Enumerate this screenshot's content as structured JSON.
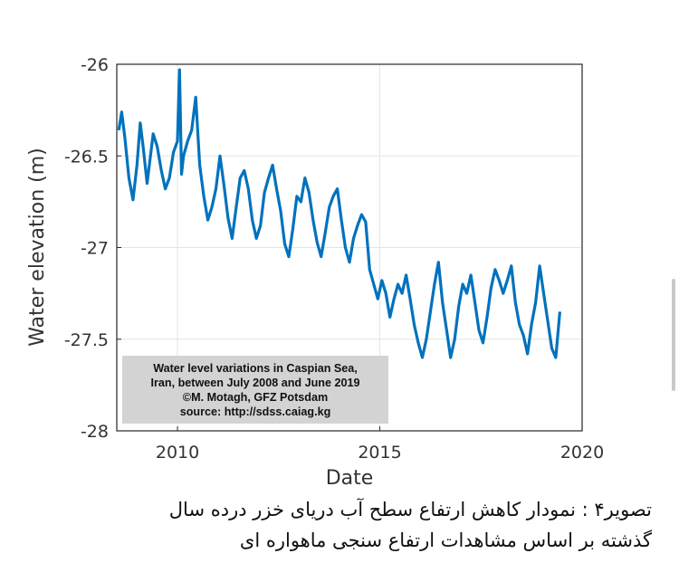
{
  "chart_data": {
    "type": "line",
    "xlabel": "Date",
    "ylabel": "Water elevation (m)",
    "xlim": [
      2008.5,
      2020.0
    ],
    "ylim": [
      -28.0,
      -26.0
    ],
    "xticks": [
      2010,
      2015,
      2020
    ],
    "yticks": [
      -26,
      -26.5,
      -27,
      -27.5,
      -28
    ],
    "xtick_labels": [
      "2010",
      "2015",
      "2020"
    ],
    "ytick_labels": [
      "-26",
      "-26.5",
      "-27",
      "-27.5",
      "-28"
    ],
    "grid": true,
    "color": "#0072bd",
    "x": [
      2008.55,
      2008.62,
      2008.7,
      2008.8,
      2008.9,
      2009.0,
      2009.08,
      2009.15,
      2009.25,
      2009.32,
      2009.4,
      2009.5,
      2009.6,
      2009.7,
      2009.8,
      2009.9,
      2010.0,
      2010.05,
      2010.1,
      2010.15,
      2010.25,
      2010.35,
      2010.45,
      2010.55,
      2010.65,
      2010.75,
      2010.85,
      2010.95,
      2011.05,
      2011.15,
      2011.25,
      2011.35,
      2011.45,
      2011.55,
      2011.65,
      2011.75,
      2011.85,
      2011.95,
      2012.05,
      2012.15,
      2012.25,
      2012.35,
      2012.45,
      2012.55,
      2012.65,
      2012.75,
      2012.85,
      2012.95,
      2013.05,
      2013.15,
      2013.25,
      2013.35,
      2013.45,
      2013.55,
      2013.65,
      2013.75,
      2013.85,
      2013.95,
      2014.05,
      2014.15,
      2014.25,
      2014.35,
      2014.45,
      2014.55,
      2014.65,
      2014.75,
      2014.85,
      2014.95,
      2015.05,
      2015.15,
      2015.25,
      2015.35,
      2015.45,
      2015.55,
      2015.65,
      2015.75,
      2015.85,
      2015.95,
      2016.05,
      2016.15,
      2016.25,
      2016.35,
      2016.45,
      2016.55,
      2016.65,
      2016.75,
      2016.85,
      2016.95,
      2017.05,
      2017.15,
      2017.25,
      2017.35,
      2017.45,
      2017.55,
      2017.65,
      2017.75,
      2017.85,
      2017.95,
      2018.05,
      2018.15,
      2018.25,
      2018.35,
      2018.45,
      2018.55,
      2018.65,
      2018.75,
      2018.85,
      2018.95,
      2019.05,
      2019.15,
      2019.25,
      2019.35,
      2019.45
    ],
    "y": [
      -26.36,
      -26.26,
      -26.4,
      -26.62,
      -26.74,
      -26.55,
      -26.32,
      -26.45,
      -26.65,
      -26.52,
      -26.38,
      -26.45,
      -26.58,
      -26.68,
      -26.62,
      -26.48,
      -26.42,
      -26.03,
      -26.6,
      -26.5,
      -26.42,
      -26.36,
      -26.18,
      -26.55,
      -26.72,
      -26.85,
      -26.78,
      -26.68,
      -26.5,
      -26.66,
      -26.84,
      -26.95,
      -26.78,
      -26.62,
      -26.58,
      -26.68,
      -26.85,
      -26.95,
      -26.88,
      -26.7,
      -26.62,
      -26.55,
      -26.68,
      -26.8,
      -26.98,
      -27.05,
      -26.9,
      -26.72,
      -26.75,
      -26.62,
      -26.7,
      -26.85,
      -26.97,
      -27.05,
      -26.92,
      -26.78,
      -26.72,
      -26.68,
      -26.85,
      -27.0,
      -27.08,
      -26.95,
      -26.88,
      -26.82,
      -26.86,
      -27.12,
      -27.2,
      -27.28,
      -27.18,
      -27.25,
      -27.38,
      -27.28,
      -27.2,
      -27.25,
      -27.15,
      -27.28,
      -27.42,
      -27.52,
      -27.6,
      -27.5,
      -27.35,
      -27.2,
      -27.08,
      -27.3,
      -27.45,
      -27.6,
      -27.5,
      -27.32,
      -27.2,
      -27.25,
      -27.15,
      -27.3,
      -27.45,
      -27.52,
      -27.38,
      -27.22,
      -27.12,
      -27.18,
      -27.25,
      -27.18,
      -27.1,
      -27.3,
      -27.42,
      -27.48,
      -27.58,
      -27.42,
      -27.3,
      -27.1,
      -27.25,
      -27.4,
      -27.55,
      -27.6,
      -27.35
    ],
    "annotation_lines": [
      "Water level variations in Caspian Sea,",
      "Iran, between July 2008 and June 2019",
      "©M. Motagh, GFZ Potsdam",
      "source: http://sdss.caiag.kg"
    ]
  },
  "caption": {
    "line1": "تصویر۴ : نمودار کاهش ارتفاع سطح آب دریای خزر درده سال",
    "line2": "گذشته بر اساس مشاهدات ارتفاع سنجی ماهواره ای"
  }
}
